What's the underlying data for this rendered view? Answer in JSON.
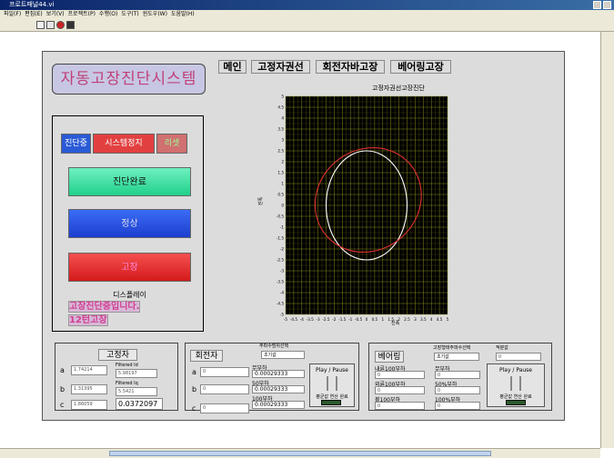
{
  "window": {
    "title": "프로트패널44.vi"
  },
  "menu": [
    "파일(F)",
    "편집(E)",
    "보기(V)",
    "프로젝트(P)",
    "수행(O)",
    "도구(T)",
    "윈도우(W)",
    "도움말(H)"
  ],
  "app": {
    "title": "자동고장진단시스템",
    "nav": [
      "메인",
      "고정자권선",
      "회전자바고장",
      "베어링고장"
    ]
  },
  "control": {
    "btn_diagnose": "진단중",
    "btn_stop": "시스템정지",
    "btn_reset": "리셋",
    "btn_done": "진단완료",
    "btn_normal": "정상",
    "btn_fault": "고장",
    "display_label": "디스플레이",
    "display_line1": "고장진단중입니다.",
    "display_line2": "12턴고장"
  },
  "chart_data": {
    "type": "scatter",
    "title": "고정자권선고장진단",
    "xlabel": "진폭",
    "ylabel": "진폭",
    "xlim": [
      -5,
      5
    ],
    "ylim": [
      -5,
      5
    ],
    "grid": true,
    "x_ticks": [
      "-5",
      "-4.5",
      "-4",
      "-3.5",
      "-3",
      "-2.5",
      "-2",
      "-1.5",
      "-1",
      "-0.5",
      "0",
      "0.5",
      "1",
      "1.5",
      "2",
      "2.5",
      "3",
      "3.5",
      "4",
      "4.5",
      "5"
    ],
    "y_ticks": [
      "5",
      "4.5",
      "4",
      "3.5",
      "3",
      "2.5",
      "2",
      "1.5",
      "1",
      "0.5",
      "0",
      "-0.5",
      "-1",
      "-1.5",
      "-2",
      "-2.5",
      "-3",
      "-3.5",
      "-4",
      "-4.5",
      "-5"
    ],
    "series": [
      {
        "color": "#ffffff",
        "cx": 0,
        "cy": 0,
        "rx": 2.5,
        "ry": 2.5,
        "rot": 0
      },
      {
        "color": "#e03030",
        "cx": 0.1,
        "cy": 0.25,
        "rx": 3.4,
        "ry": 2.3,
        "rot": 40
      }
    ]
  },
  "stator": {
    "title": "고정자",
    "rows": [
      {
        "label": "a",
        "value": "1.74214"
      },
      {
        "label": "b",
        "value": "1.31395"
      },
      {
        "label": "c",
        "value": "1.86059"
      }
    ],
    "filtered_id_label": "Filtered Id",
    "filtered_id": "5.98197",
    "filtered_iq_label": "Filtered Iq",
    "filtered_iq": "5.5421",
    "result": "0.0372097"
  },
  "rotor": {
    "title": "회전자",
    "freq_label": "주파수범위선택",
    "freq_value": "초기값",
    "rows": [
      {
        "label": "a",
        "value": "0"
      },
      {
        "label": "b",
        "value": "0"
      },
      {
        "label": "c",
        "value": "0"
      }
    ],
    "loads": [
      {
        "label": "무부하",
        "value": "0.00029333"
      },
      {
        "label": "50부하",
        "value": "0.00029333"
      },
      {
        "label": "100부하",
        "value": "0.00029333"
      }
    ],
    "play": "Play / Pause",
    "avg_label": "평균값 연산 완료"
  },
  "bearing": {
    "title": "베어링",
    "freq_label": "고장형태주파수선택",
    "freq_value": "초기값",
    "integral_label": "적분값",
    "integral_value": "0",
    "left": [
      {
        "label": "내륜100부하",
        "value": "0"
      },
      {
        "label": "외륜100부하",
        "value": "0"
      },
      {
        "label": "볼100부하",
        "value": "0"
      }
    ],
    "right": [
      {
        "label": "무부하",
        "value": "0"
      },
      {
        "label": "50%부하",
        "value": "0"
      },
      {
        "label": "100%부하",
        "value": "0"
      }
    ],
    "play": "Play / Pause",
    "avg_label": "평균값 연산 완료"
  }
}
